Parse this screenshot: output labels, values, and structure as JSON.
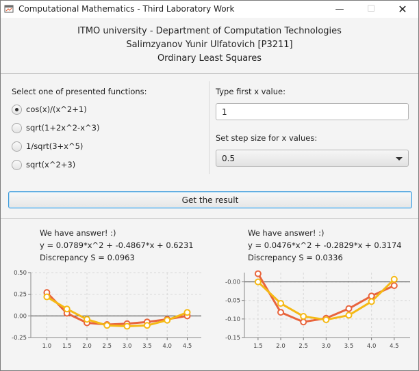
{
  "window": {
    "title": "Computational Mathematics - Third Laboratory Work",
    "controls": {
      "minimize": "—",
      "maximize": "☐",
      "close": "✕"
    },
    "icon": "java-app-icon"
  },
  "header": {
    "line1": "ITMO university - Department of Computation Technologies",
    "line2": "Salimzyanov Yunir Ulfatovich [P3211]",
    "line3": "Ordinary Least Squares"
  },
  "functions": {
    "label": "Select one of presented functions:",
    "options": [
      "cos(x)/(x^2+1)",
      "sqrt(1+2x^2-x^3)",
      "1/sqrt(3+x^5)",
      "sqrt(x^2+3)"
    ],
    "selected_index": 0
  },
  "inputs": {
    "first_x_label": "Type first x value:",
    "first_x_value": "1",
    "step_label": "Set step size for x values:",
    "step_value": "0.5"
  },
  "button": {
    "label": "Get the result"
  },
  "results": [
    {
      "heading": "We have answer! :)",
      "equation": "y = 0.0789*x^2 + -0.4867*x + 0.6231",
      "discrepancy": "Discrepancy S = 0.0963"
    },
    {
      "heading": "We have answer! :)",
      "equation": "y = 0.0476*x^2 + -0.2829*x + 0.3174",
      "discrepancy": "Discrepancy S = 0.0336"
    }
  ],
  "colors": {
    "series1": "#e8643c",
    "series2": "#f5b915",
    "accent": "#3c9bdc"
  },
  "chart_data": [
    {
      "type": "line",
      "x": [
        1.0,
        1.5,
        2.0,
        2.5,
        3.0,
        3.5,
        4.0,
        4.5
      ],
      "xticks": [
        "1.0",
        "1.5",
        "2.0",
        "2.5",
        "3.0",
        "3.5",
        "4.0",
        "4.5"
      ],
      "yticks": [
        "0.50",
        "0.25",
        "0.00",
        "-0.25"
      ],
      "ylim": [
        -0.25,
        0.5
      ],
      "grid": true,
      "series": [
        {
          "values": [
            0.27,
            0.03,
            -0.08,
            -0.1,
            -0.09,
            -0.07,
            -0.04,
            0.0
          ]
        },
        {
          "values": [
            0.22,
            0.08,
            -0.04,
            -0.11,
            -0.12,
            -0.11,
            -0.05,
            0.04
          ]
        }
      ]
    },
    {
      "type": "line",
      "x": [
        1.5,
        2.0,
        2.5,
        3.0,
        3.5,
        4.0,
        4.5
      ],
      "xticks": [
        "1.5",
        "2.0",
        "2.5",
        "3.0",
        "3.5",
        "4.0",
        "4.5"
      ],
      "yticks": [
        "-0.00",
        "-0.05",
        "-0.10",
        "-0.15"
      ],
      "ylim": [
        -0.15,
        0.025
      ],
      "grid": true,
      "series": [
        {
          "values": [
            0.022,
            -0.082,
            -0.108,
            -0.098,
            -0.072,
            -0.038,
            -0.01
          ]
        },
        {
          "values": [
            0.0,
            -0.058,
            -0.093,
            -0.102,
            -0.09,
            -0.053,
            0.007
          ]
        }
      ]
    }
  ]
}
